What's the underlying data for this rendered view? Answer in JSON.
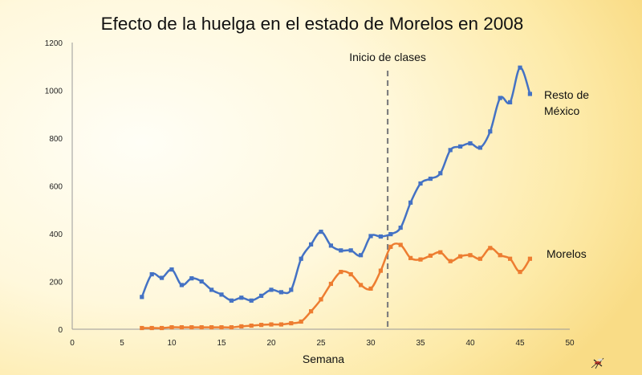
{
  "chart_data": {
    "type": "line",
    "title": "Efecto de la huelga  en el estado de Morelos en 2008",
    "xlabel": "Semana",
    "ylabel": "",
    "xlim": [
      0,
      50
    ],
    "ylim": [
      0,
      1200
    ],
    "xticks": [
      0,
      5,
      10,
      15,
      20,
      25,
      30,
      35,
      40,
      45,
      50
    ],
    "yticks": [
      0,
      200,
      400,
      600,
      800,
      1000,
      1200
    ],
    "grid": false,
    "annotations": [
      {
        "x": 31.7,
        "text": "Inicio de clases",
        "style": "dashed-vertical-line"
      }
    ],
    "series": [
      {
        "name_lines": [
          "Resto de",
          "México"
        ],
        "color": "#4472c4",
        "x": [
          7,
          8,
          9,
          10,
          11,
          12,
          13,
          14,
          15,
          16,
          17,
          18,
          19,
          20,
          21,
          22,
          23,
          24,
          25,
          26,
          27,
          28,
          29,
          30,
          31,
          32,
          33,
          34,
          35,
          36,
          37,
          38,
          39,
          40,
          41,
          42,
          43,
          44,
          45,
          46
        ],
        "values": [
          135,
          230,
          215,
          250,
          185,
          213,
          200,
          165,
          145,
          120,
          132,
          120,
          140,
          165,
          155,
          165,
          295,
          355,
          408,
          350,
          330,
          330,
          310,
          390,
          388,
          398,
          425,
          530,
          610,
          630,
          653,
          750,
          765,
          778,
          760,
          828,
          968,
          950,
          1095,
          985
        ]
      },
      {
        "name_lines": [
          "Morelos"
        ],
        "color": "#ed7d31",
        "x": [
          7,
          8,
          9,
          10,
          11,
          12,
          13,
          14,
          15,
          16,
          17,
          18,
          19,
          20,
          21,
          22,
          23,
          24,
          25,
          26,
          27,
          28,
          29,
          30,
          31,
          32,
          33,
          34,
          35,
          36,
          37,
          38,
          39,
          40,
          41,
          42,
          43,
          44,
          45,
          46
        ],
        "values": [
          5,
          5,
          5,
          8,
          8,
          8,
          8,
          8,
          8,
          8,
          12,
          15,
          18,
          20,
          20,
          25,
          32,
          75,
          125,
          190,
          240,
          230,
          185,
          170,
          245,
          345,
          353,
          298,
          292,
          308,
          322,
          285,
          305,
          310,
          295,
          340,
          310,
          295,
          240,
          295
        ]
      }
    ]
  }
}
